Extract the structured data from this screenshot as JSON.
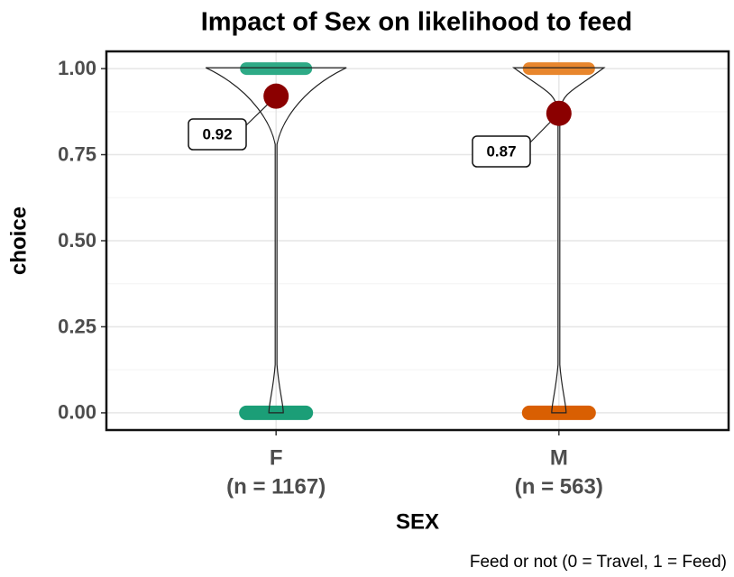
{
  "chart_data": {
    "type": "violin",
    "title": "Impact of Sex on likelihood to feed",
    "x_label": "SEX",
    "y_label": "choice",
    "caption": "Feed or not (0 = Travel, 1 = Feed)",
    "categories": [
      "F",
      "M"
    ],
    "n_labels": [
      "(n = 1167)",
      "(n = 563)"
    ],
    "colors": [
      "#1b9e77",
      "#d95f02"
    ],
    "top_colors": [
      "#2eaa86",
      "#e8862d"
    ],
    "mean_color": "#8b0000",
    "values": [
      0.92,
      0.87
    ],
    "value_labels": [
      "0.92",
      "0.87"
    ],
    "ylim": [
      -0.05,
      1.05
    ],
    "yticks": [
      {
        "value": 0,
        "label": "0.00"
      },
      {
        "value": 0.25,
        "label": "0.25"
      },
      {
        "value": 0.5,
        "label": "0.50"
      },
      {
        "value": 0.75,
        "label": "0.75"
      },
      {
        "value": 1,
        "label": "1.00"
      }
    ],
    "grid": true
  }
}
